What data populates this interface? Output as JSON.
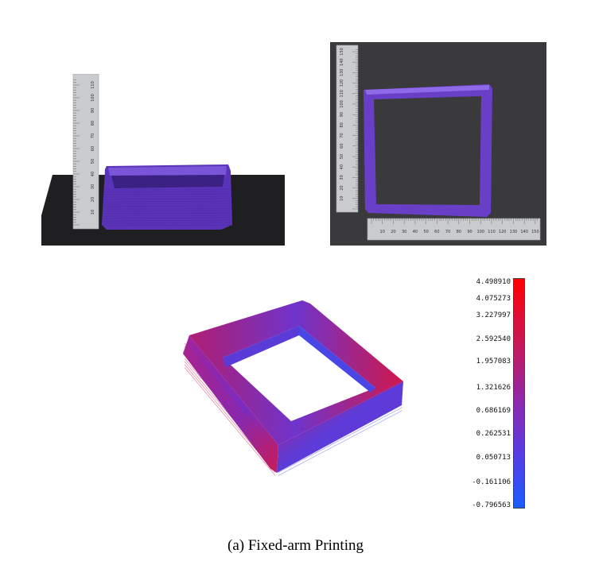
{
  "caption": "(a) Fixed-arm Printing",
  "colorbar": {
    "ticks": [
      "4.498910",
      "4.075273",
      "3.227997",
      "2.592540",
      "1.957083",
      "1.321626",
      "0.686169",
      "0.262531",
      "0.050713",
      "-0.161106",
      "-0.796563"
    ],
    "max_color": "#ff0000",
    "min_color": "#1a5cff"
  },
  "ruler_side": {
    "numbers": [
      "10",
      "20",
      "30",
      "40",
      "50",
      "60",
      "70",
      "80",
      "90",
      "100",
      "110"
    ]
  },
  "ruler_top_vertical": {
    "numbers": [
      "10",
      "20",
      "30",
      "40",
      "50",
      "60",
      "70",
      "80",
      "90",
      "100",
      "110",
      "120",
      "130",
      "140",
      "150"
    ]
  },
  "ruler_top_horizontal": {
    "numbers": [
      "10",
      "20",
      "30",
      "40",
      "50",
      "60",
      "70",
      "80",
      "90",
      "100",
      "110",
      "120",
      "130",
      "140",
      "150"
    ]
  },
  "colors": {
    "print_purple": "#6a3fc8",
    "stage_black": "#1e1e20",
    "background_gray": "#3a3a3c",
    "ruler_steel": "#c9cbce"
  }
}
